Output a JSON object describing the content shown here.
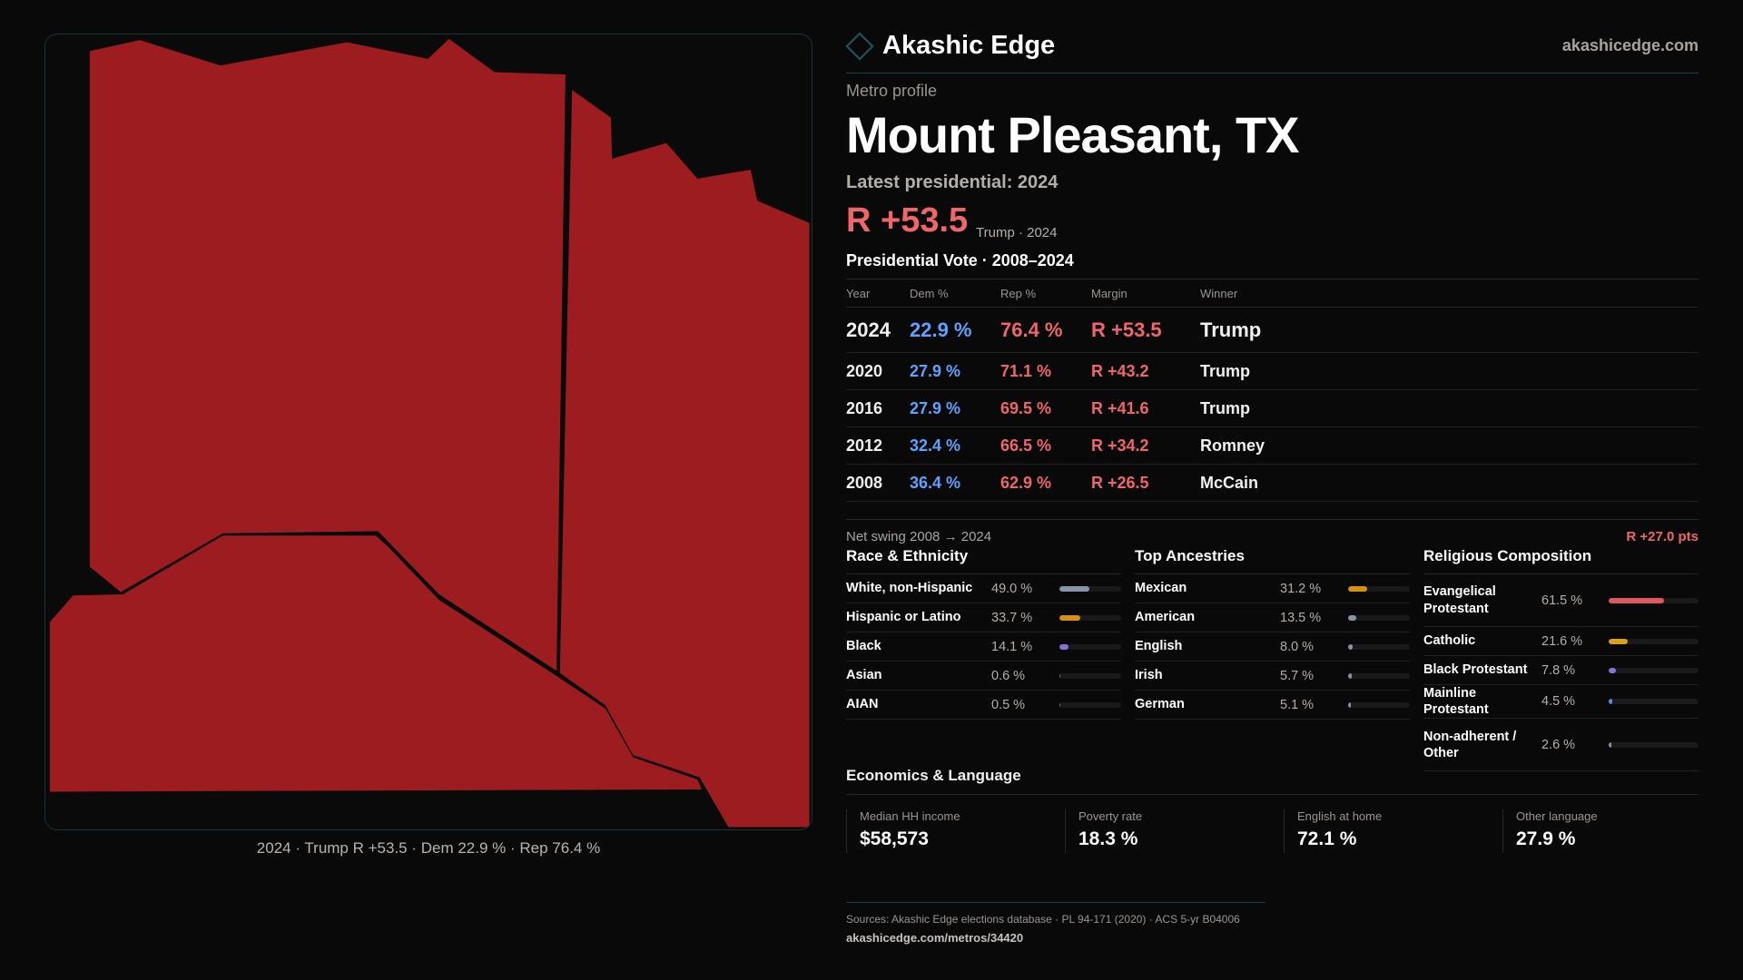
{
  "brand": {
    "name": "Akashic Edge",
    "site": "akashicedge.com"
  },
  "header": {
    "kicker": "Metro profile",
    "title": "Mount Pleasant, TX",
    "latest": "Latest presidential: 2024",
    "margin": "R +53.5",
    "margin_sub": "Trump · 2024"
  },
  "map": {
    "fill": "#9c1c1f",
    "caption": "2024 · Trump R +53.5 · Dem 22.9 % · Rep 76.4 %"
  },
  "votes": {
    "title": "Presidential Vote · 2008–2024",
    "headers": [
      "Year",
      "Dem %",
      "Rep %",
      "Margin",
      "Winner"
    ],
    "rows": [
      {
        "year": "2024",
        "dem": "22.9 %",
        "rep": "76.4 %",
        "margin": "R +53.5",
        "winner": "Trump"
      },
      {
        "year": "2020",
        "dem": "27.9 %",
        "rep": "71.1 %",
        "margin": "R +43.2",
        "winner": "Trump"
      },
      {
        "year": "2016",
        "dem": "27.9 %",
        "rep": "69.5 %",
        "margin": "R +41.6",
        "winner": "Trump"
      },
      {
        "year": "2012",
        "dem": "32.4 %",
        "rep": "66.5 %",
        "margin": "R +34.2",
        "winner": "Romney"
      },
      {
        "year": "2008",
        "dem": "36.4 %",
        "rep": "62.9 %",
        "margin": "R +26.5",
        "winner": "McCain"
      }
    ]
  },
  "swing": {
    "label": "Net swing 2008 → 2024",
    "value": "R +27.0 pts"
  },
  "race": {
    "title": "Race & Ethnicity",
    "items": [
      {
        "name": "White, non-Hispanic",
        "pct": "49.0 %",
        "value": 49.0,
        "color": "#8a94a6"
      },
      {
        "name": "Hispanic or Latino",
        "pct": "33.7 %",
        "value": 33.7,
        "color": "#d4900e"
      },
      {
        "name": "Black",
        "pct": "14.1 %",
        "value": 14.1,
        "color": "#8a6fd8"
      },
      {
        "name": "Asian",
        "pct": "0.6 %",
        "value": 0.6,
        "color": "#6b7280"
      },
      {
        "name": "AIAN",
        "pct": "0.5 %",
        "value": 0.5,
        "color": "#6b7280"
      }
    ]
  },
  "ancestry": {
    "title": "Top Ancestries",
    "items": [
      {
        "name": "Mexican",
        "pct": "31.2 %",
        "value": 31.2,
        "color": "#d4900e"
      },
      {
        "name": "American",
        "pct": "13.5 %",
        "value": 13.5,
        "color": "#8a94a6"
      },
      {
        "name": "English",
        "pct": "8.0 %",
        "value": 8.0,
        "color": "#8a94a6"
      },
      {
        "name": "Irish",
        "pct": "5.7 %",
        "value": 5.7,
        "color": "#8a94a6"
      },
      {
        "name": "German",
        "pct": "5.1 %",
        "value": 5.1,
        "color": "#8a94a6"
      }
    ]
  },
  "religion": {
    "title": "Religious Composition",
    "items": [
      {
        "name": "Evangelical Protestant",
        "pct": "61.5 %",
        "value": 61.5,
        "color": "#e0575c"
      },
      {
        "name": "Catholic",
        "pct": "21.6 %",
        "value": 21.6,
        "color": "#d9a21c"
      },
      {
        "name": "Black Protestant",
        "pct": "7.8 %",
        "value": 7.8,
        "color": "#8a6fd8"
      },
      {
        "name": "Mainline Protestant",
        "pct": "4.5 %",
        "value": 4.5,
        "color": "#4f8fe0"
      },
      {
        "name": "Non-adherent / Other",
        "pct": "2.6 %",
        "value": 2.6,
        "color": "#8a94a6"
      }
    ]
  },
  "economics": {
    "title": "Economics & Language",
    "cards": [
      {
        "label": "Median HH income",
        "value": "$58,573"
      },
      {
        "label": "Poverty rate",
        "value": "18.3 %"
      },
      {
        "label": "English at home",
        "value": "72.1 %"
      },
      {
        "label": "Other language",
        "value": "27.9 %"
      }
    ]
  },
  "footer": {
    "sources": "Sources: Akashic Edge elections database · PL 94-171 (2020) · ACS 5-yr B04006",
    "url": "akashicedge.com/metros/34420"
  }
}
